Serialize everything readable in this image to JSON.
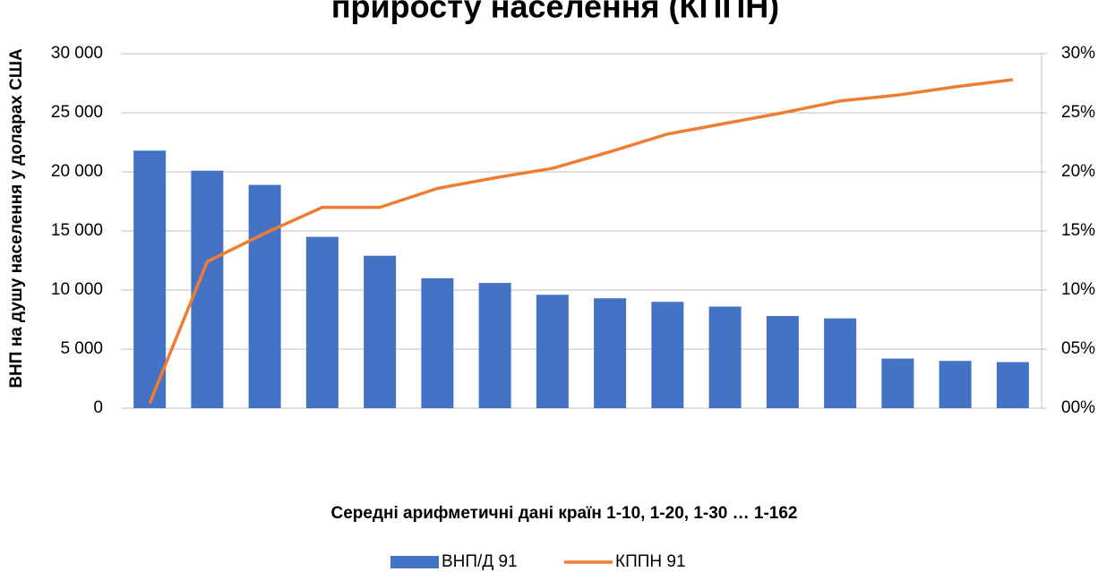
{
  "chart_data": {
    "type": "bar",
    "title": "приросту населення (КППН)",
    "x_label": "Середні арифметичні дані країн 1-10, 1-20, 1-30 … 1-162",
    "y_label": "ВНП на душу населення у доларах США",
    "categories": [
      null,
      null,
      null,
      null,
      null,
      null,
      null,
      null,
      null,
      null,
      null,
      null,
      null,
      null,
      null,
      null
    ],
    "series": [
      {
        "name": "ВНП/Д 91",
        "type": "bar",
        "color": "#4472c4",
        "axis": "y",
        "values": [
          21800,
          20100,
          18900,
          14500,
          12900,
          11000,
          10600,
          9600,
          9300,
          9000,
          8600,
          7800,
          7600,
          4200,
          4000,
          3900
        ]
      },
      {
        "name": "КППН 91",
        "type": "line",
        "color": "#ed7d31",
        "axis": "y2",
        "values": [
          0.4,
          12.4,
          14.8,
          17.0,
          17.0,
          18.6,
          19.5,
          20.3,
          21.7,
          23.2,
          24.1,
          25.0,
          26.0,
          26.5,
          27.2,
          27.8
        ]
      }
    ],
    "ylim": [
      0,
      30000
    ],
    "yticks": [
      0,
      {
        "value": 5000,
        "label": "5 000"
      },
      {
        "value": 10000,
        "label": "10 000"
      },
      {
        "value": 15000,
        "label": "15 000"
      },
      {
        "value": 20000,
        "label": "20 000"
      },
      {
        "value": 25000,
        "label": "25 000"
      },
      {
        "value": 30000,
        "label": "30 000"
      }
    ],
    "y2lim": [
      0,
      30
    ],
    "y2ticks": [
      {
        "value": 0,
        "label": "00%"
      },
      {
        "value": 5,
        "label": "05%"
      },
      {
        "value": 10,
        "label": "10%"
      },
      {
        "value": 15,
        "label": "15%"
      },
      {
        "value": 20,
        "label": "20%"
      },
      {
        "value": 25,
        "label": "25%"
      },
      {
        "value": 30,
        "label": "30%"
      }
    ],
    "grid": true,
    "legend": "bottom"
  }
}
